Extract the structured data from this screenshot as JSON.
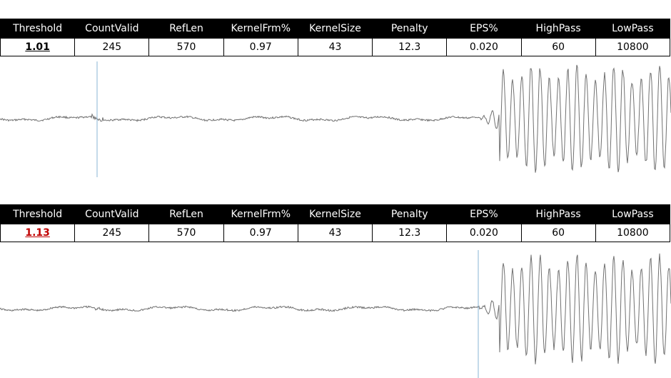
{
  "panels": [
    {
      "headers": [
        "Threshold",
        "CountValid",
        "RefLen",
        "KernelFrm%",
        "KernelSize",
        "Penalty",
        "EPS%",
        "HighPass",
        "LowPass"
      ],
      "values": [
        "1.01",
        "245",
        "570",
        "0.97",
        "43",
        "12.3",
        "0.020",
        "60",
        "10800"
      ],
      "threshold_color": "#000000",
      "marker_position_fraction": 0.145
    },
    {
      "headers": [
        "Threshold",
        "CountValid",
        "RefLen",
        "KernelFrm%",
        "KernelSize",
        "Penalty",
        "EPS%",
        "HighPass",
        "LowPass"
      ],
      "values": [
        "1.13",
        "245",
        "570",
        "0.97",
        "43",
        "12.3",
        "0.020",
        "60",
        "10800"
      ],
      "threshold_color": "#c00000",
      "marker_position_fraction": 0.713
    }
  ],
  "colors": {
    "waveform": "#707070",
    "marker": "#8ab4d4",
    "header_bg": "#000000"
  }
}
